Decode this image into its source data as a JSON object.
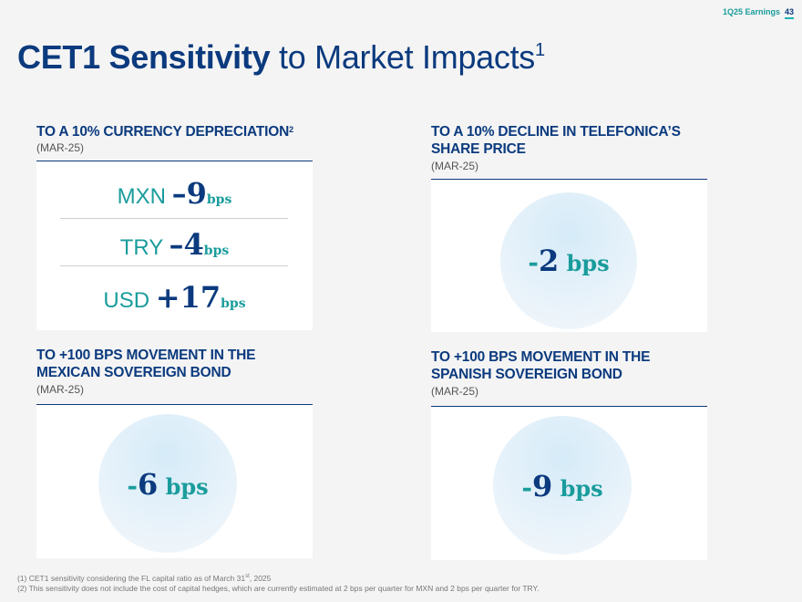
{
  "header": {
    "label": "1Q25 Earnings",
    "page": "43"
  },
  "title": {
    "bold": "CET1 Sensitivity",
    "rest": " to Market Impacts",
    "sup": "1"
  },
  "sections": {
    "currency": {
      "title": "TO A 10% CURRENCY DEPRECIATION",
      "sup": "2",
      "subtitle": "(MAR-25)",
      "rows": [
        {
          "code": "MXN ",
          "value": "–9",
          "unit": "bps"
        },
        {
          "code": "TRY ",
          "value": "–4",
          "unit": "bps"
        },
        {
          "code": "USD ",
          "value": "+17",
          "unit": "bps"
        }
      ]
    },
    "telefonica": {
      "title_line1": "TO A 10% DECLINE IN TELEFONICA’S",
      "title_line2": "SHARE PRICE",
      "subtitle": "(MAR-25)",
      "dash": "-",
      "value": "2",
      "unit": " bps"
    },
    "mexican_bond": {
      "title_line1": "TO +100 BPS MOVEMENT IN THE",
      "title_line2": "MEXICAN SOVEREIGN BOND",
      "subtitle": "(MAR-25)",
      "dash": "-",
      "value": "6",
      "unit": " bps"
    },
    "spanish_bond": {
      "title_line1": "TO +100 BPS MOVEMENT IN THE",
      "title_line2": "SPANISH SOVEREIGN BOND",
      "subtitle": "(MAR-25)",
      "dash": "-",
      "value": "9",
      "unit": " bps"
    }
  },
  "footnotes": {
    "f1_pre": "(1) CET1 sensitivity considering the FL capital ratio as of March 31",
    "f1_sup": "st",
    "f1_post": ", 2025",
    "f2": "(2) This sensitivity does not include the cost of capital hedges, which are currently estimated at 2 bps per quarter for MXN and 2 bps per quarter for TRY."
  }
}
